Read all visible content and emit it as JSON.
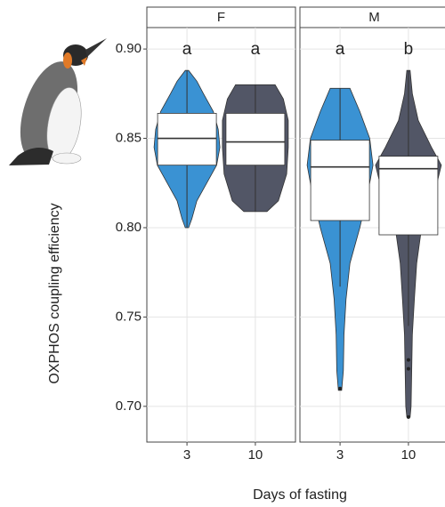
{
  "chart_data": {
    "type": "violin",
    "y_label": "OXPHOS coupling efficiency",
    "x_label": "Days of fasting",
    "ylim": [
      0.68,
      0.912
    ],
    "yticks": [
      {
        "value": 0.7,
        "label": "0.70"
      },
      0.75,
      {
        "value": 0.8,
        "label": "0.80"
      },
      0.85,
      {
        "value": 0.9,
        "label": "0.90"
      }
    ],
    "colors": [
      "#3a92d3",
      "#525666"
    ],
    "grid": true,
    "panels": [
      {
        "name": "F",
        "categories": [
          "3",
          "10"
        ],
        "groups": [
          {
            "letter": "a",
            "whisker": [
              0.8,
              0.888
            ],
            "box": [
              0.835,
              0.85,
              0.864
            ],
            "outliers": [],
            "violin": {
              "y": [
                0.8,
                0.805,
                0.815,
                0.825,
                0.835,
                0.845,
                0.855,
                0.865,
                0.875,
                0.882,
                0.888
              ],
              "width": [
                0.05,
                0.15,
                0.3,
                0.6,
                0.9,
                1.0,
                0.95,
                0.8,
                0.5,
                0.3,
                0.05
              ]
            }
          },
          {
            "letter": "a",
            "whisker": [
              0.809,
              0.88
            ],
            "box": [
              0.835,
              0.848,
              0.864
            ],
            "outliers": [],
            "violin": {
              "y": [
                0.809,
                0.815,
                0.83,
                0.845,
                0.86,
                0.872,
                0.88
              ],
              "width": [
                0.35,
                0.7,
                0.95,
                1.0,
                1.0,
                0.85,
                0.6
              ]
            }
          }
        ]
      },
      {
        "name": "M",
        "categories": [
          "3",
          "10"
        ],
        "groups": [
          {
            "letter": "a",
            "whisker": [
              0.767,
              0.878
            ],
            "box": [
              0.804,
              0.834,
              0.849
            ],
            "outliers": [
              0.71
            ],
            "violin": {
              "y": [
                0.709,
                0.72,
                0.74,
                0.76,
                0.78,
                0.8,
                0.82,
                0.835,
                0.85,
                0.865,
                0.878
              ],
              "width": [
                0.05,
                0.1,
                0.12,
                0.18,
                0.3,
                0.6,
                0.85,
                1.0,
                0.9,
                0.6,
                0.3
              ]
            }
          },
          {
            "letter": "b",
            "whisker": [
              0.745,
              0.888
            ],
            "box": [
              0.796,
              0.833,
              0.84
            ],
            "outliers": [
              0.726,
              0.721,
              0.694
            ],
            "violin": {
              "y": [
                0.694,
                0.7,
                0.72,
                0.74,
                0.76,
                0.78,
                0.8,
                0.82,
                0.835,
                0.845,
                0.86,
                0.875,
                0.888
              ],
              "width": [
                0.05,
                0.08,
                0.1,
                0.12,
                0.18,
                0.25,
                0.4,
                0.8,
                1.0,
                0.7,
                0.3,
                0.12,
                0.05
              ]
            }
          }
        ]
      }
    ]
  }
}
